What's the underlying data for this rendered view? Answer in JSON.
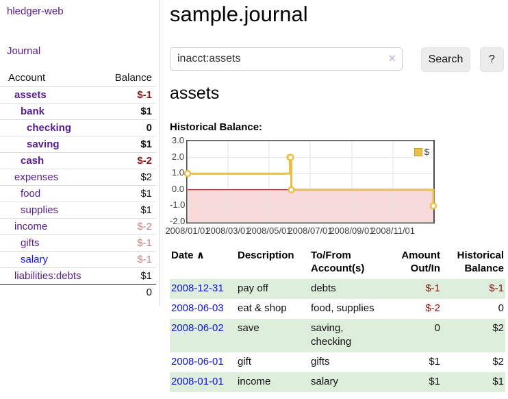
{
  "colors": {
    "purple": "#571c8d",
    "blue": "#1112d8",
    "negative_red": "#8d1414",
    "negative_red_muted": "#c47e7e",
    "row_green": "#ddeedd",
    "divider": "#d8d8d8",
    "chart_gold": "#e7c049"
  },
  "sidebar": {
    "brand": "hledger-web",
    "nav_journal": "Journal",
    "accounts_table": {
      "header_account": "Account",
      "header_balance": "Balance",
      "rows": [
        {
          "name": "assets",
          "level": 1,
          "bold": true,
          "link": "purple",
          "balance": "$-1",
          "balance_style": "neg"
        },
        {
          "name": "bank",
          "level": 2,
          "bold": true,
          "link": "purple",
          "balance": "$1",
          "balance_style": "pos"
        },
        {
          "name": "checking",
          "level": 3,
          "bold": true,
          "link": "purple",
          "balance": "0",
          "balance_style": "pos"
        },
        {
          "name": "saving",
          "level": 3,
          "bold": true,
          "link": "purple",
          "balance": "$1",
          "balance_style": "pos"
        },
        {
          "name": "cash",
          "level": 2,
          "bold": true,
          "link": "purple",
          "balance": "$-2",
          "balance_style": "neg"
        },
        {
          "name": "expenses",
          "level": 1,
          "bold": false,
          "link": "purple",
          "balance": "$2",
          "balance_style": "pos"
        },
        {
          "name": "food",
          "level": 2,
          "bold": false,
          "link": "purple",
          "balance": "$1",
          "balance_style": "pos"
        },
        {
          "name": "supplies",
          "level": 2,
          "bold": false,
          "link": "purple",
          "balance": "$1",
          "balance_style": "pos"
        },
        {
          "name": "income",
          "level": 1,
          "bold": false,
          "link": "purple",
          "balance": "$-2",
          "balance_style": "neg-muted"
        },
        {
          "name": "gifts",
          "level": 2,
          "bold": false,
          "link": "purple",
          "balance": "$-1",
          "balance_style": "neg-muted"
        },
        {
          "name": "salary",
          "level": 2,
          "bold": false,
          "link": "blue",
          "balance": "$-1",
          "balance_style": "neg-muted"
        },
        {
          "name": "liabilities:debts",
          "level": 1,
          "bold": false,
          "link": "purple",
          "balance": "$1",
          "balance_style": "pos"
        }
      ],
      "total": "0"
    }
  },
  "header": {
    "title": "sample.journal"
  },
  "search": {
    "value": "inacct:assets",
    "clear_icon": "×",
    "button_label": "Search",
    "help_label": "?"
  },
  "account_page": {
    "heading": "assets",
    "chart_label": "Historical Balance:"
  },
  "chart_data": {
    "type": "line",
    "step": true,
    "title": "Historical Balance:",
    "legend": {
      "label": "$",
      "position": "top-right"
    },
    "x_start": "2008-01-01",
    "x_end": "2008-12-31",
    "ylim": [
      -2,
      3
    ],
    "y_ticks": [
      3.0,
      2.0,
      1.0,
      0.0,
      -1.0,
      -2.0
    ],
    "y_tick_labels": [
      "3.0",
      "2.0",
      "1.0",
      "0.0",
      "-1.0",
      "-2.0"
    ],
    "x_ticks": [
      {
        "date": "2008-01-01",
        "label": "2008/01/01"
      },
      {
        "date": "2008-03-01",
        "label": "2008/03/01"
      },
      {
        "date": "2008-05-01",
        "label": "2008/05/01"
      },
      {
        "date": "2008-07-01",
        "label": "2008/07/01"
      },
      {
        "date": "2008-09-01",
        "label": "2008/09/01"
      },
      {
        "date": "2008-11-01",
        "label": "2008/11/01"
      }
    ],
    "series": [
      {
        "name": "$",
        "color": "#e7c049",
        "points": [
          {
            "date": "2008-01-01",
            "value": 1
          },
          {
            "date": "2008-06-01",
            "value": 2
          },
          {
            "date": "2008-06-02",
            "value": 2
          },
          {
            "date": "2008-06-03",
            "value": 0
          },
          {
            "date": "2008-12-31",
            "value": -1
          }
        ]
      }
    ],
    "grid": true,
    "negative_region_fill": "#f9dada",
    "zero_line_color": "#8b0000"
  },
  "register": {
    "headers": [
      {
        "label": "Date",
        "sorted": true,
        "align": "left"
      },
      {
        "label": "Description",
        "align": "left"
      },
      {
        "label": "To/From Account(s)",
        "align": "left"
      },
      {
        "label": "Amount Out/In",
        "align": "right"
      },
      {
        "label": "Historical Balance",
        "align": "right"
      }
    ],
    "sort_icon": "∧",
    "rows": [
      {
        "date": "2008-12-31",
        "description": "pay off",
        "accounts": "debts",
        "amount": "$-1",
        "amount_neg": true,
        "balance": "$-1",
        "balance_neg": true,
        "shaded": true
      },
      {
        "date": "2008-06-03",
        "description": "eat & shop",
        "accounts": "food, supplies",
        "amount": "$-2",
        "amount_neg": true,
        "balance": "0",
        "balance_neg": false,
        "shaded": false
      },
      {
        "date": "2008-06-02",
        "description": "save",
        "accounts": "saving, checking",
        "amount": "0",
        "amount_neg": false,
        "balance": "$2",
        "balance_neg": false,
        "shaded": true
      },
      {
        "date": "2008-06-01",
        "description": "gift",
        "accounts": "gifts",
        "amount": "$1",
        "amount_neg": false,
        "balance": "$2",
        "balance_neg": false,
        "shaded": false
      },
      {
        "date": "2008-01-01",
        "description": "income",
        "accounts": "salary",
        "amount": "$1",
        "amount_neg": false,
        "balance": "$1",
        "balance_neg": false,
        "shaded": true
      }
    ]
  }
}
